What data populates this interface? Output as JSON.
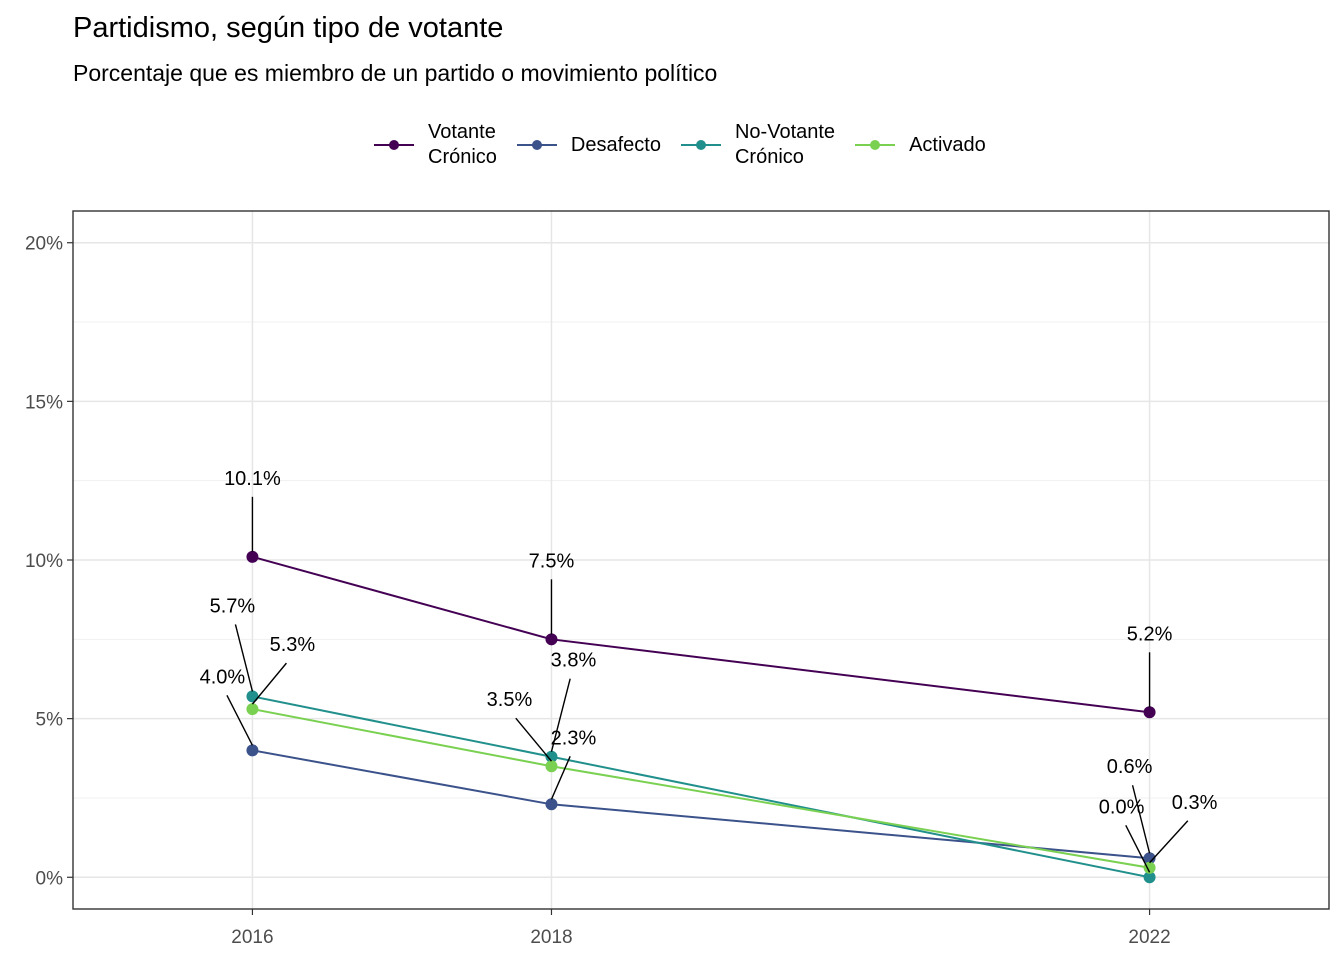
{
  "chart_data": {
    "type": "line",
    "title": "Partidismo, según tipo de votante",
    "subtitle": "Porcentaje que es miembro de un partido o movimiento político",
    "x": [
      2016,
      2018,
      2022
    ],
    "x_tick_labels": [
      "2016",
      "2018",
      "2022"
    ],
    "xlim": [
      2014.8,
      2023.2
    ],
    "ylim": [
      -1,
      21
    ],
    "y_ticks": [
      0,
      5,
      10,
      15,
      20
    ],
    "y_tick_labels": [
      "0%",
      "5%",
      "10%",
      "15%",
      "20%"
    ],
    "grid": true,
    "legend_position": "top",
    "series": [
      {
        "name": "Votante\nCrónico",
        "color": "#440154",
        "values": [
          10.1,
          7.5,
          5.2
        ],
        "labels": [
          "10.1%",
          "7.5%",
          "5.2%"
        ]
      },
      {
        "name": "Desafecto",
        "color": "#3B528B",
        "values": [
          4.0,
          2.3,
          0.6
        ],
        "labels": [
          "4.0%",
          "2.3%",
          "0.6%"
        ]
      },
      {
        "name": "No-Votante\nCrónico",
        "color": "#21908C",
        "values": [
          5.7,
          3.8,
          0.0
        ],
        "labels": [
          "5.7%",
          "3.8%",
          "0.0%"
        ]
      },
      {
        "name": "Activado",
        "color": "#7AD151",
        "values": [
          5.3,
          3.5,
          0.3
        ],
        "labels": [
          "5.3%",
          "3.5%",
          "0.3%"
        ]
      }
    ]
  }
}
